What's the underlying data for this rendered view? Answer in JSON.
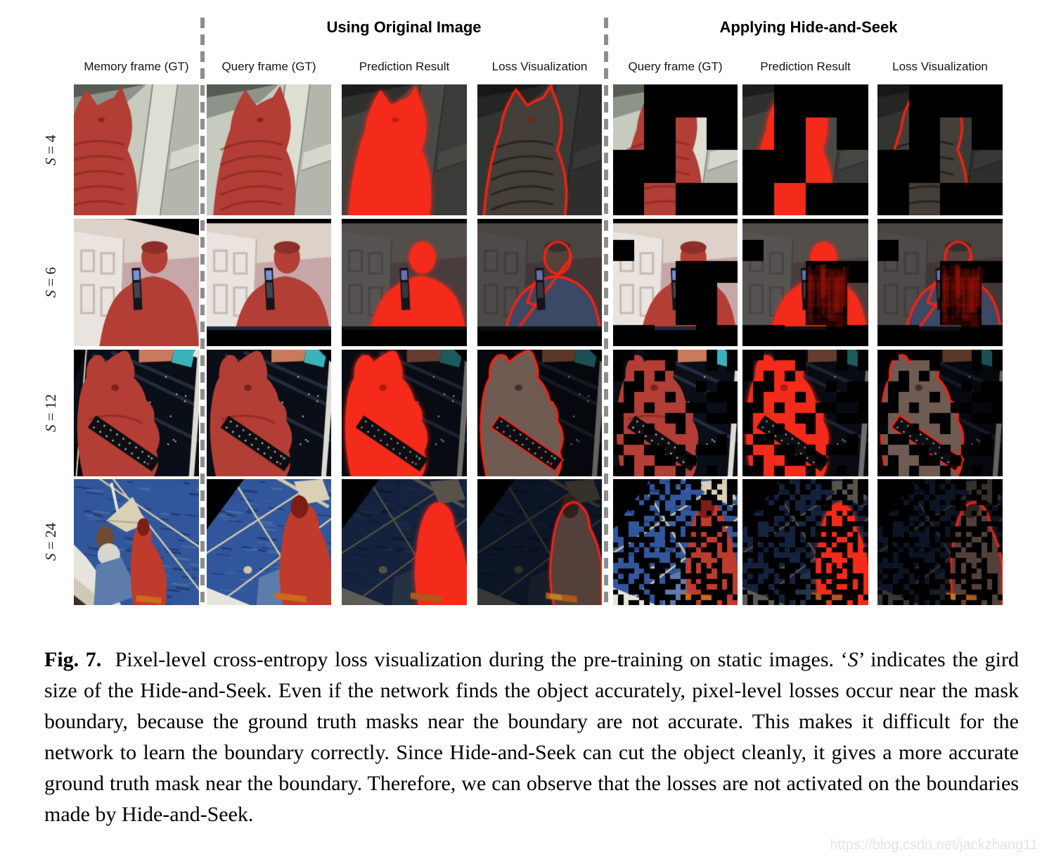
{
  "figure": {
    "section_headers": [
      "Using Original Image",
      "Applying Hide-and-Seek"
    ],
    "column_headers": [
      "Memory frame (GT)",
      "Query frame (GT)",
      "Prediction Result",
      "Loss Visualization",
      "Query frame (GT)",
      "Prediction Result",
      "Loss Visualization"
    ],
    "rows": [
      {
        "id": "s4",
        "label": "S = 4",
        "grid_size": 4,
        "scene": "cat",
        "scene_description": "tabby cat sitting by a window frame, ground-truth object mask overlaid in red"
      },
      {
        "id": "s6",
        "label": "S = 6",
        "grid_size": 6,
        "scene": "man",
        "scene_description": "man holding a flip phone in front of a white door and mauve wall, mask in red"
      },
      {
        "id": "s12",
        "label": "S = 12",
        "grid_size": 12,
        "scene": "teddy",
        "scene_description": "red teddy bear with a TV remote on a dark tilted photo, mask in red"
      },
      {
        "id": "s24",
        "label": "S = 24",
        "grid_size": 24,
        "scene": "boat",
        "scene_description": "people on a sailboat over blue water, sitting person masked in red"
      }
    ],
    "colors": {
      "mask_red": "#b23e35",
      "prediction_red": "#f42a1a",
      "loss_outline_red": "#ff2113",
      "hidden_patch": "#000000",
      "divider_gray": "#8d8d8d"
    }
  },
  "caption": {
    "segments": [
      {
        "text": "Fig. 7.",
        "bold": true
      },
      {
        "text": "  Pixel-level cross-entropy loss visualization during the pre-training on static images. ‘",
        "bold": false
      },
      {
        "text": "S",
        "italic": true
      },
      {
        "text": "’ indicates the gird size of the Hide-and-Seek. Even if the network finds the object accurately, pixel-level losses occur near the mask boundary, because the ground truth masks near the boundary are not accurate. This makes it difficult for the network to learn the boundary correctly. Since Hide-and-Seek can cut the object cleanly, it gives a more accurate ground truth mask near the boundary. Therefore, we can observe that the losses are not activated on the boundaries made by Hide-and-Seek.",
        "bold": false
      }
    ]
  },
  "watermark": "https://blog.csdn.net/jackzhang11"
}
